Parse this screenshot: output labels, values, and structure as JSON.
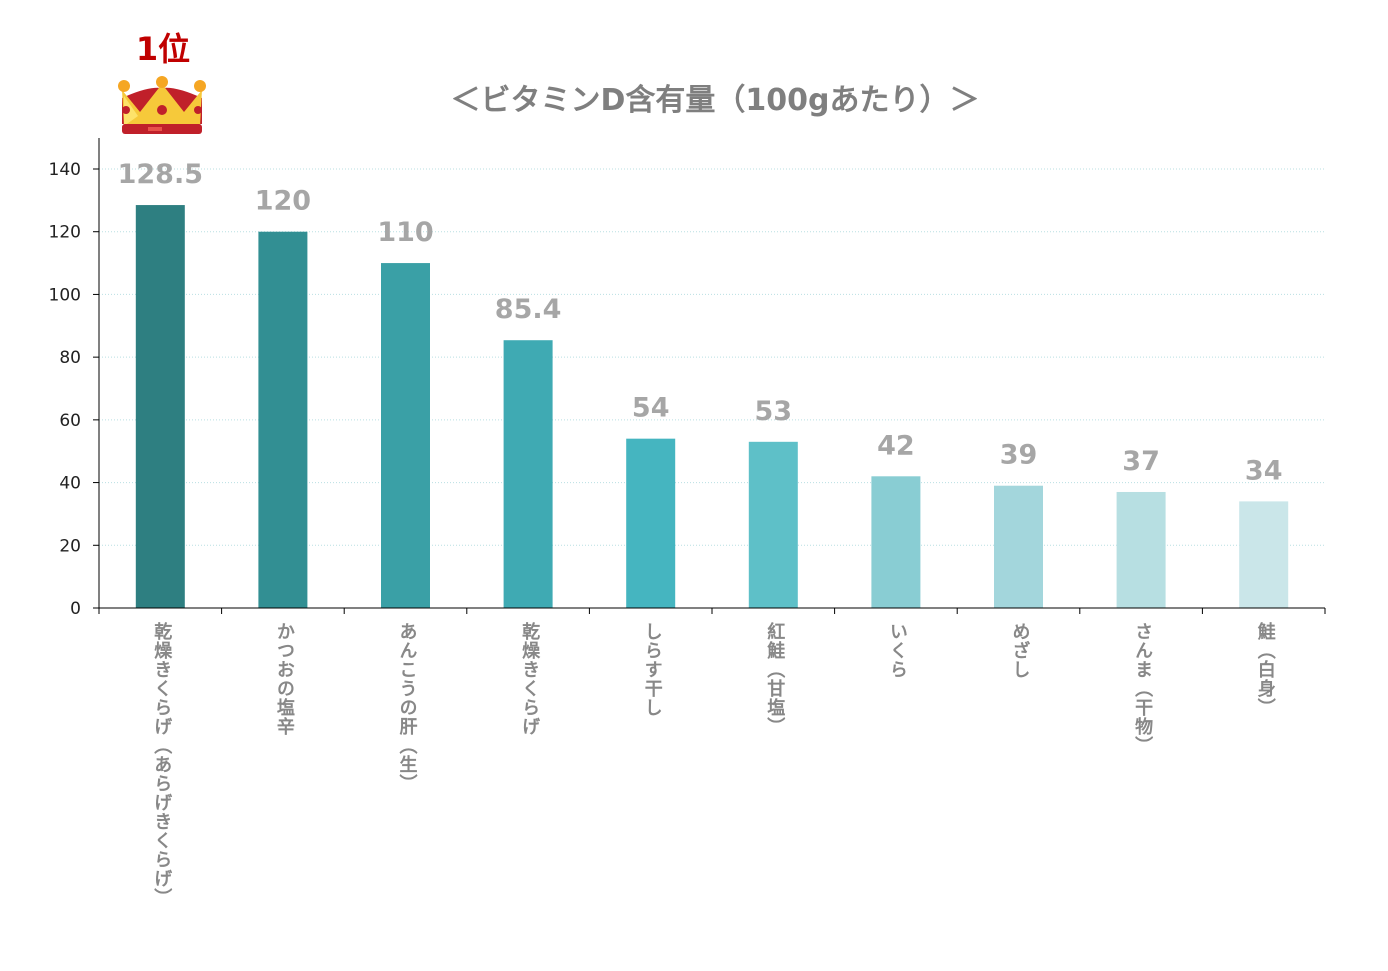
{
  "badge": {
    "rank_label": "1位",
    "icon": "crown-icon"
  },
  "chart_data": {
    "type": "bar",
    "title": "＜ビタミンD含有量（100gあたり）＞",
    "xlabel": "",
    "ylabel": "",
    "ylim": [
      0,
      140
    ],
    "yticks": [
      0,
      20,
      40,
      60,
      80,
      100,
      120,
      140
    ],
    "grid": true,
    "categories": [
      "乾燥きくらげ（あらげきくらげ）",
      "かつおの塩辛",
      "あんこうの肝（生）",
      "乾燥きくらげ",
      "しらす干し",
      "紅鮭（甘塩）",
      "いくら",
      "めざし",
      "さんま（干物）",
      "鮭（白身）"
    ],
    "values": [
      128.5,
      120,
      110,
      85.4,
      54,
      53,
      42,
      39,
      37,
      34
    ],
    "data_labels": [
      "128.5",
      "120",
      "110",
      "85.4",
      "54",
      "53",
      "42",
      "39",
      "37",
      "34"
    ],
    "colors": [
      "#2e7f81",
      "#328f93",
      "#3aa0a6",
      "#3faab3",
      "#45b5c0",
      "#5ec0c8",
      "#89cdd3",
      "#a3d6dc",
      "#b7dfe2",
      "#cae6e9"
    ]
  }
}
